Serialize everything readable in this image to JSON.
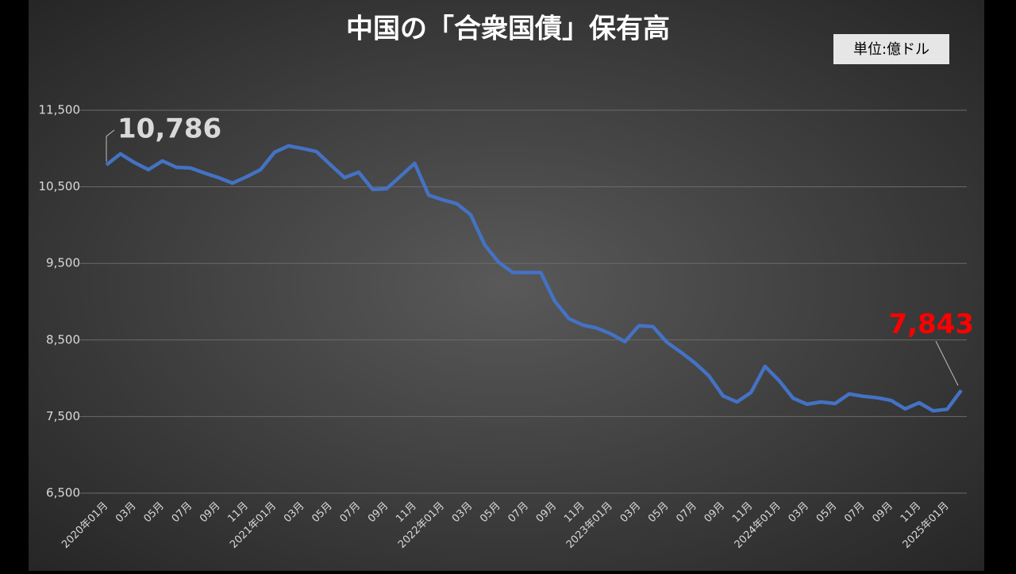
{
  "chart_data": {
    "type": "line",
    "title": "中国の「合衆国債」保有高",
    "unit_note": "単位:億ドル",
    "categories": [
      "2020年01月",
      null,
      "03月",
      null,
      "05月",
      null,
      "07月",
      null,
      "09月",
      null,
      "11月",
      null,
      "2021年01月",
      null,
      "03月",
      null,
      "05月",
      null,
      "07月",
      null,
      "09月",
      null,
      "11月",
      null,
      "2022年01月",
      null,
      "03月",
      null,
      "05月",
      null,
      "07月",
      null,
      "09月",
      null,
      "11月",
      null,
      "2023年01月",
      null,
      "03月",
      null,
      "05月",
      null,
      "07月",
      null,
      "09月",
      null,
      "11月",
      null,
      "2024年01月",
      null,
      "03月",
      null,
      "05月",
      null,
      "07月",
      null,
      "09月",
      null,
      "11月",
      null,
      "2025年01月",
      null
    ],
    "series": [
      {
        "color": "#4472c4",
        "values": [
          10786,
          10930,
          10817,
          10724,
          10837,
          10755,
          10745,
          10680,
          10620,
          10548,
          10630,
          10724,
          10950,
          11034,
          11000,
          10960,
          10786,
          10620,
          10690,
          10465,
          10475,
          10640,
          10806,
          10390,
          10330,
          10280,
          10135,
          9740,
          9512,
          9380,
          9380,
          9380,
          9005,
          8780,
          8695,
          8655,
          8580,
          8478,
          8685,
          8675,
          8470,
          8340,
          8200,
          8030,
          7770,
          7690,
          7815,
          8155,
          7970,
          7740,
          7660,
          7690,
          7670,
          7795,
          7765,
          7745,
          7710,
          7600,
          7680,
          7575,
          7595,
          7843
        ],
        "value_labels": [
          "10,786",
          null,
          null,
          null,
          null,
          null,
          null,
          null,
          null,
          null,
          null,
          null,
          null,
          null,
          null,
          null,
          null,
          null,
          null,
          null,
          null,
          null,
          null,
          null,
          null,
          null,
          null,
          null,
          null,
          null,
          null,
          null,
          null,
          null,
          null,
          null,
          null,
          null,
          null,
          null,
          null,
          null,
          null,
          null,
          null,
          null,
          null,
          null,
          null,
          null,
          null,
          null,
          null,
          null,
          null,
          null,
          null,
          null,
          null,
          null,
          null,
          "7,843"
        ],
        "value_label_colors": [
          "#d9d9d9",
          "#ff0000"
        ]
      }
    ],
    "ylim": [
      6500,
      11500
    ],
    "yticks": [
      {
        "value": 6500,
        "label": "6,500"
      },
      {
        "value": 7500,
        "label": "7,500"
      },
      {
        "value": 8500,
        "label": "8,500"
      },
      {
        "value": 9500,
        "label": "9,500"
      },
      {
        "value": 10500,
        "label": "10,500"
      },
      {
        "value": 11500,
        "label": "11,500"
      }
    ],
    "grid": true
  }
}
